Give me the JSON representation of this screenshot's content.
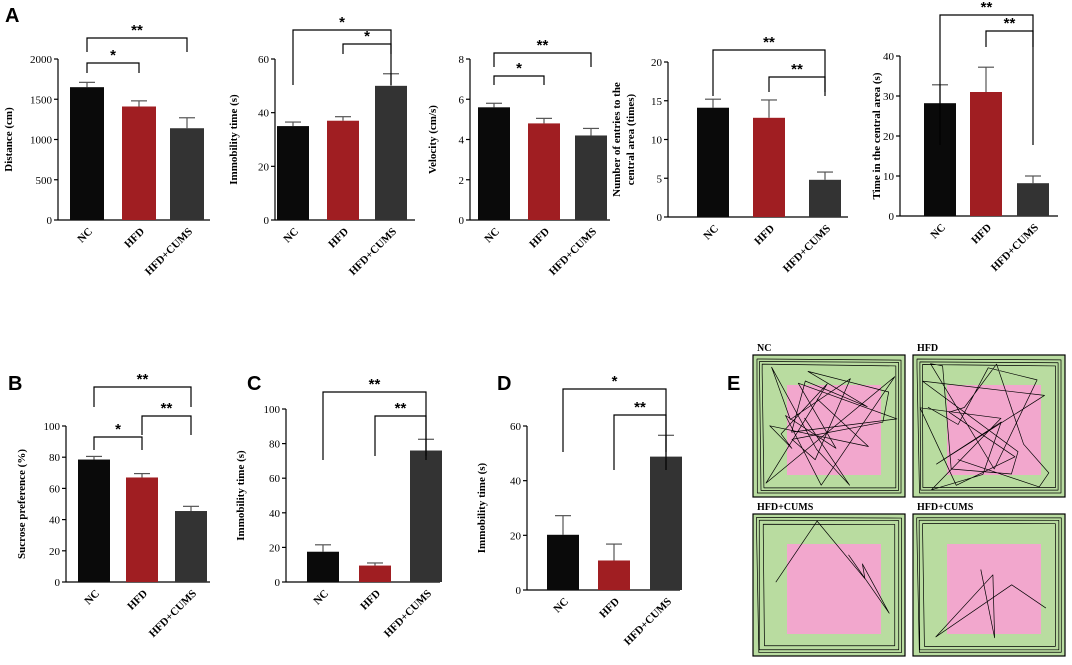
{
  "colors": {
    "NC": "#0a0a0a",
    "HFD": "#a01e22",
    "HFD+CUMS": "#333333",
    "arena_outer": "#b9dca0",
    "arena_inner": "#f2a7cd"
  },
  "panel_letters": {
    "A": "A",
    "B": "B",
    "C": "C",
    "D": "D",
    "E": "E"
  },
  "chart_data": [
    {
      "id": "a1",
      "panel": "A",
      "type": "bar",
      "ylabel": "Distance (cm)",
      "categories": [
        "NC",
        "HFD",
        "HFD+CUMS"
      ],
      "values": [
        1650,
        1410,
        1140
      ],
      "errors": [
        60,
        70,
        130
      ],
      "ylim": [
        0,
        2000
      ],
      "yticks": [
        0,
        500,
        1000,
        1500,
        2000
      ],
      "significance": [
        {
          "from": 0,
          "to": 1,
          "label": "*"
        },
        {
          "from": 0,
          "to": 2,
          "label": "**"
        }
      ]
    },
    {
      "id": "a2",
      "panel": "A",
      "type": "bar",
      "ylabel": "Immobility time (s)",
      "categories": [
        "NC",
        "HFD",
        "HFD+CUMS"
      ],
      "values": [
        35,
        37,
        50
      ],
      "errors": [
        1.5,
        1.5,
        4.5
      ],
      "ylim": [
        0,
        60
      ],
      "yticks": [
        0,
        20,
        40,
        60
      ],
      "significance": [
        {
          "from": 1,
          "to": 2,
          "label": "*"
        },
        {
          "from": 0,
          "to": 2,
          "label": "*"
        }
      ]
    },
    {
      "id": "a3",
      "panel": "A",
      "type": "bar",
      "ylabel": "Velocity (cm/s)",
      "categories": [
        "NC",
        "HFD",
        "HFD+CUMS"
      ],
      "values": [
        5.6,
        4.8,
        4.2
      ],
      "errors": [
        0.2,
        0.25,
        0.35
      ],
      "ylim": [
        0,
        8
      ],
      "yticks": [
        0,
        2,
        4,
        6,
        8
      ],
      "significance": [
        {
          "from": 0,
          "to": 1,
          "label": "*"
        },
        {
          "from": 0,
          "to": 2,
          "label": "**"
        }
      ]
    },
    {
      "id": "a4",
      "panel": "A",
      "type": "bar",
      "ylabel": [
        "Number of entries to the",
        "central area (times)"
      ],
      "categories": [
        "NC",
        "HFD",
        "HFD+CUMS"
      ],
      "values": [
        14.1,
        12.8,
        4.8
      ],
      "errors": [
        1.1,
        2.3,
        1.0
      ],
      "ylim": [
        0,
        20
      ],
      "yticks": [
        0,
        5,
        10,
        15,
        20
      ],
      "significance": [
        {
          "from": 1,
          "to": 2,
          "label": "**"
        },
        {
          "from": 0,
          "to": 2,
          "label": "**"
        }
      ]
    },
    {
      "id": "a5",
      "panel": "A",
      "type": "bar",
      "ylabel": "Time in the central area (s)",
      "categories": [
        "NC",
        "HFD",
        "HFD+CUMS"
      ],
      "values": [
        28.2,
        31,
        8.2
      ],
      "errors": [
        4.6,
        6.2,
        1.8
      ],
      "ylim": [
        0,
        40
      ],
      "yticks": [
        0,
        10,
        20,
        30,
        40
      ],
      "significance": [
        {
          "from": 1,
          "to": 2,
          "label": "**"
        },
        {
          "from": 0,
          "to": 2,
          "label": "**"
        }
      ]
    },
    {
      "id": "b",
      "panel": "B",
      "type": "bar",
      "ylabel": "Sucrose preference (%)",
      "categories": [
        "NC",
        "HFD",
        "HFD+CUMS"
      ],
      "values": [
        78.5,
        67,
        45.5
      ],
      "errors": [
        2,
        2.5,
        3
      ],
      "ylim": [
        0,
        100
      ],
      "yticks": [
        0,
        20,
        40,
        60,
        80,
        100
      ],
      "significance": [
        {
          "from": 0,
          "to": 1,
          "label": "*"
        },
        {
          "from": 1,
          "to": 2,
          "label": "**"
        },
        {
          "from": 0,
          "to": 2,
          "label": "**"
        }
      ]
    },
    {
      "id": "c",
      "panel": "C",
      "type": "bar",
      "ylabel": "Immobility time (s)",
      "categories": [
        "NC",
        "HFD",
        "HFD+CUMS"
      ],
      "values": [
        17.5,
        9.5,
        76
      ],
      "errors": [
        4,
        1.5,
        6.5
      ],
      "ylim": [
        0,
        100
      ],
      "yticks": [
        0,
        20,
        40,
        60,
        80,
        100
      ],
      "significance": [
        {
          "from": 1,
          "to": 2,
          "label": "**"
        },
        {
          "from": 0,
          "to": 2,
          "label": "**"
        }
      ]
    },
    {
      "id": "d",
      "panel": "D",
      "type": "bar",
      "ylabel": "Immobility time (s)",
      "categories": [
        "NC",
        "HFD",
        "HFD+CUMS"
      ],
      "values": [
        20.2,
        10.8,
        48.8
      ],
      "errors": [
        7,
        6,
        7.8
      ],
      "ylim": [
        0,
        60
      ],
      "yticks": [
        0,
        20,
        40,
        60
      ],
      "significance": [
        {
          "from": 1,
          "to": 2,
          "label": "**"
        },
        {
          "from": 0,
          "to": 2,
          "label": "*"
        }
      ]
    }
  ],
  "arenas": [
    {
      "label": "NC"
    },
    {
      "label": "HFD"
    },
    {
      "label": "HFD+CUMS"
    },
    {
      "label": "HFD+CUMS"
    }
  ]
}
